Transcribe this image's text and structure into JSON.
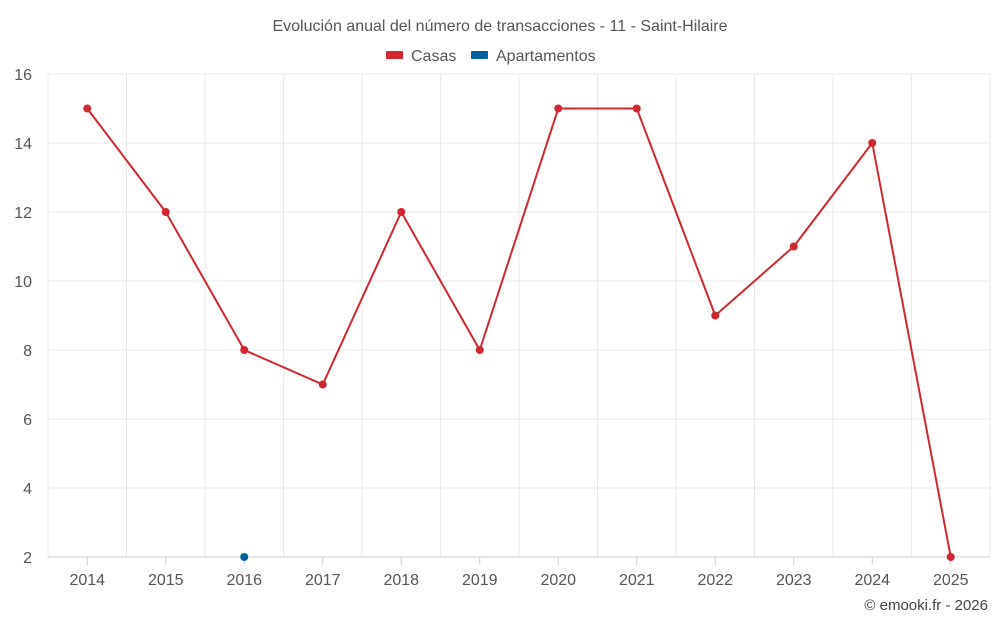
{
  "chart_data": {
    "type": "line",
    "title": "Evolución anual del número de transacciones - 11 - Saint-Hilaire",
    "categories": [
      "2014",
      "2015",
      "2016",
      "2017",
      "2018",
      "2019",
      "2020",
      "2021",
      "2022",
      "2023",
      "2024",
      "2025"
    ],
    "series": [
      {
        "name": "Casas",
        "color": "#d0282e",
        "values": [
          15,
          12,
          8,
          7,
          12,
          8,
          15,
          15,
          9,
          11,
          14,
          2
        ]
      },
      {
        "name": "Apartamentos",
        "color": "#005f9e",
        "values": [
          null,
          null,
          2,
          null,
          null,
          null,
          null,
          null,
          null,
          null,
          null,
          null
        ]
      }
    ],
    "ylim": [
      2,
      16
    ],
    "yticks": [
      2,
      4,
      6,
      8,
      10,
      12,
      14,
      16
    ],
    "grid": true,
    "legend_position": "top-center",
    "xlabel": "",
    "ylabel": ""
  },
  "credit": "© emooki.fr - 2026"
}
